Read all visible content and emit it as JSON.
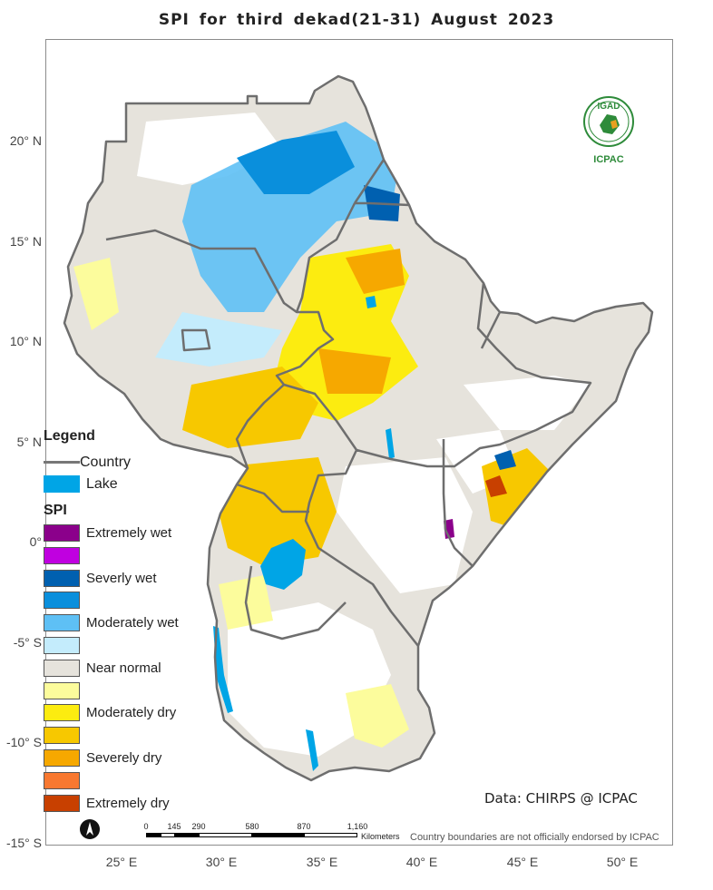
{
  "title": "SPI   for   third dekad(21-31)  August  2023",
  "latitudes": [
    {
      "label": "20° N"
    },
    {
      "label": "15° N"
    },
    {
      "label": "10° N"
    },
    {
      "label": "5° N"
    },
    {
      "label": "0°"
    },
    {
      "label": "-5° S"
    },
    {
      "label": "-10° S"
    },
    {
      "label": "-15° S"
    }
  ],
  "longitudes": [
    {
      "label": "25° E"
    },
    {
      "label": "30° E"
    },
    {
      "label": "35° E"
    },
    {
      "label": "40° E"
    },
    {
      "label": "45° E"
    },
    {
      "label": "50° E"
    }
  ],
  "legend": {
    "heading": "Legend",
    "country_label": "Country",
    "lake_label": "Lake",
    "lake_color": "#00a5e6",
    "spi_heading": "SPI",
    "classes": [
      {
        "label": "Extremely wet",
        "color": "#8b008b"
      },
      {
        "label": "",
        "color": "#c000e0"
      },
      {
        "label": "Severly wet",
        "color": "#0060b0"
      },
      {
        "label": "",
        "color": "#0a8fdc"
      },
      {
        "label": "Moderately wet",
        "color": "#5ec0f5"
      },
      {
        "label": "",
        "color": "#c4ecfc"
      },
      {
        "label": "Near normal",
        "color": "#e6e3dc"
      },
      {
        "label": "",
        "color": "#fcfc9c"
      },
      {
        "label": "Moderately dry",
        "color": "#fcec10"
      },
      {
        "label": "",
        "color": "#f7c800"
      },
      {
        "label": "Severely dry",
        "color": "#f6a800"
      },
      {
        "label": "",
        "color": "#f87830"
      },
      {
        "label": "Extremely dry",
        "color": "#c84000"
      }
    ]
  },
  "data_source": "Data: CHIRPS @ ICPAC",
  "disclaimer": "Country boundaries are not officially endorsed by ICPAC",
  "scale": {
    "ticks": [
      "0",
      "145",
      "290",
      "580",
      "870",
      "1,160"
    ],
    "unit": "Kilometers"
  },
  "logo": {
    "top_text": "IGAD",
    "bottom_text": "ICPAC"
  },
  "north_symbol": "north-arrow-icon"
}
